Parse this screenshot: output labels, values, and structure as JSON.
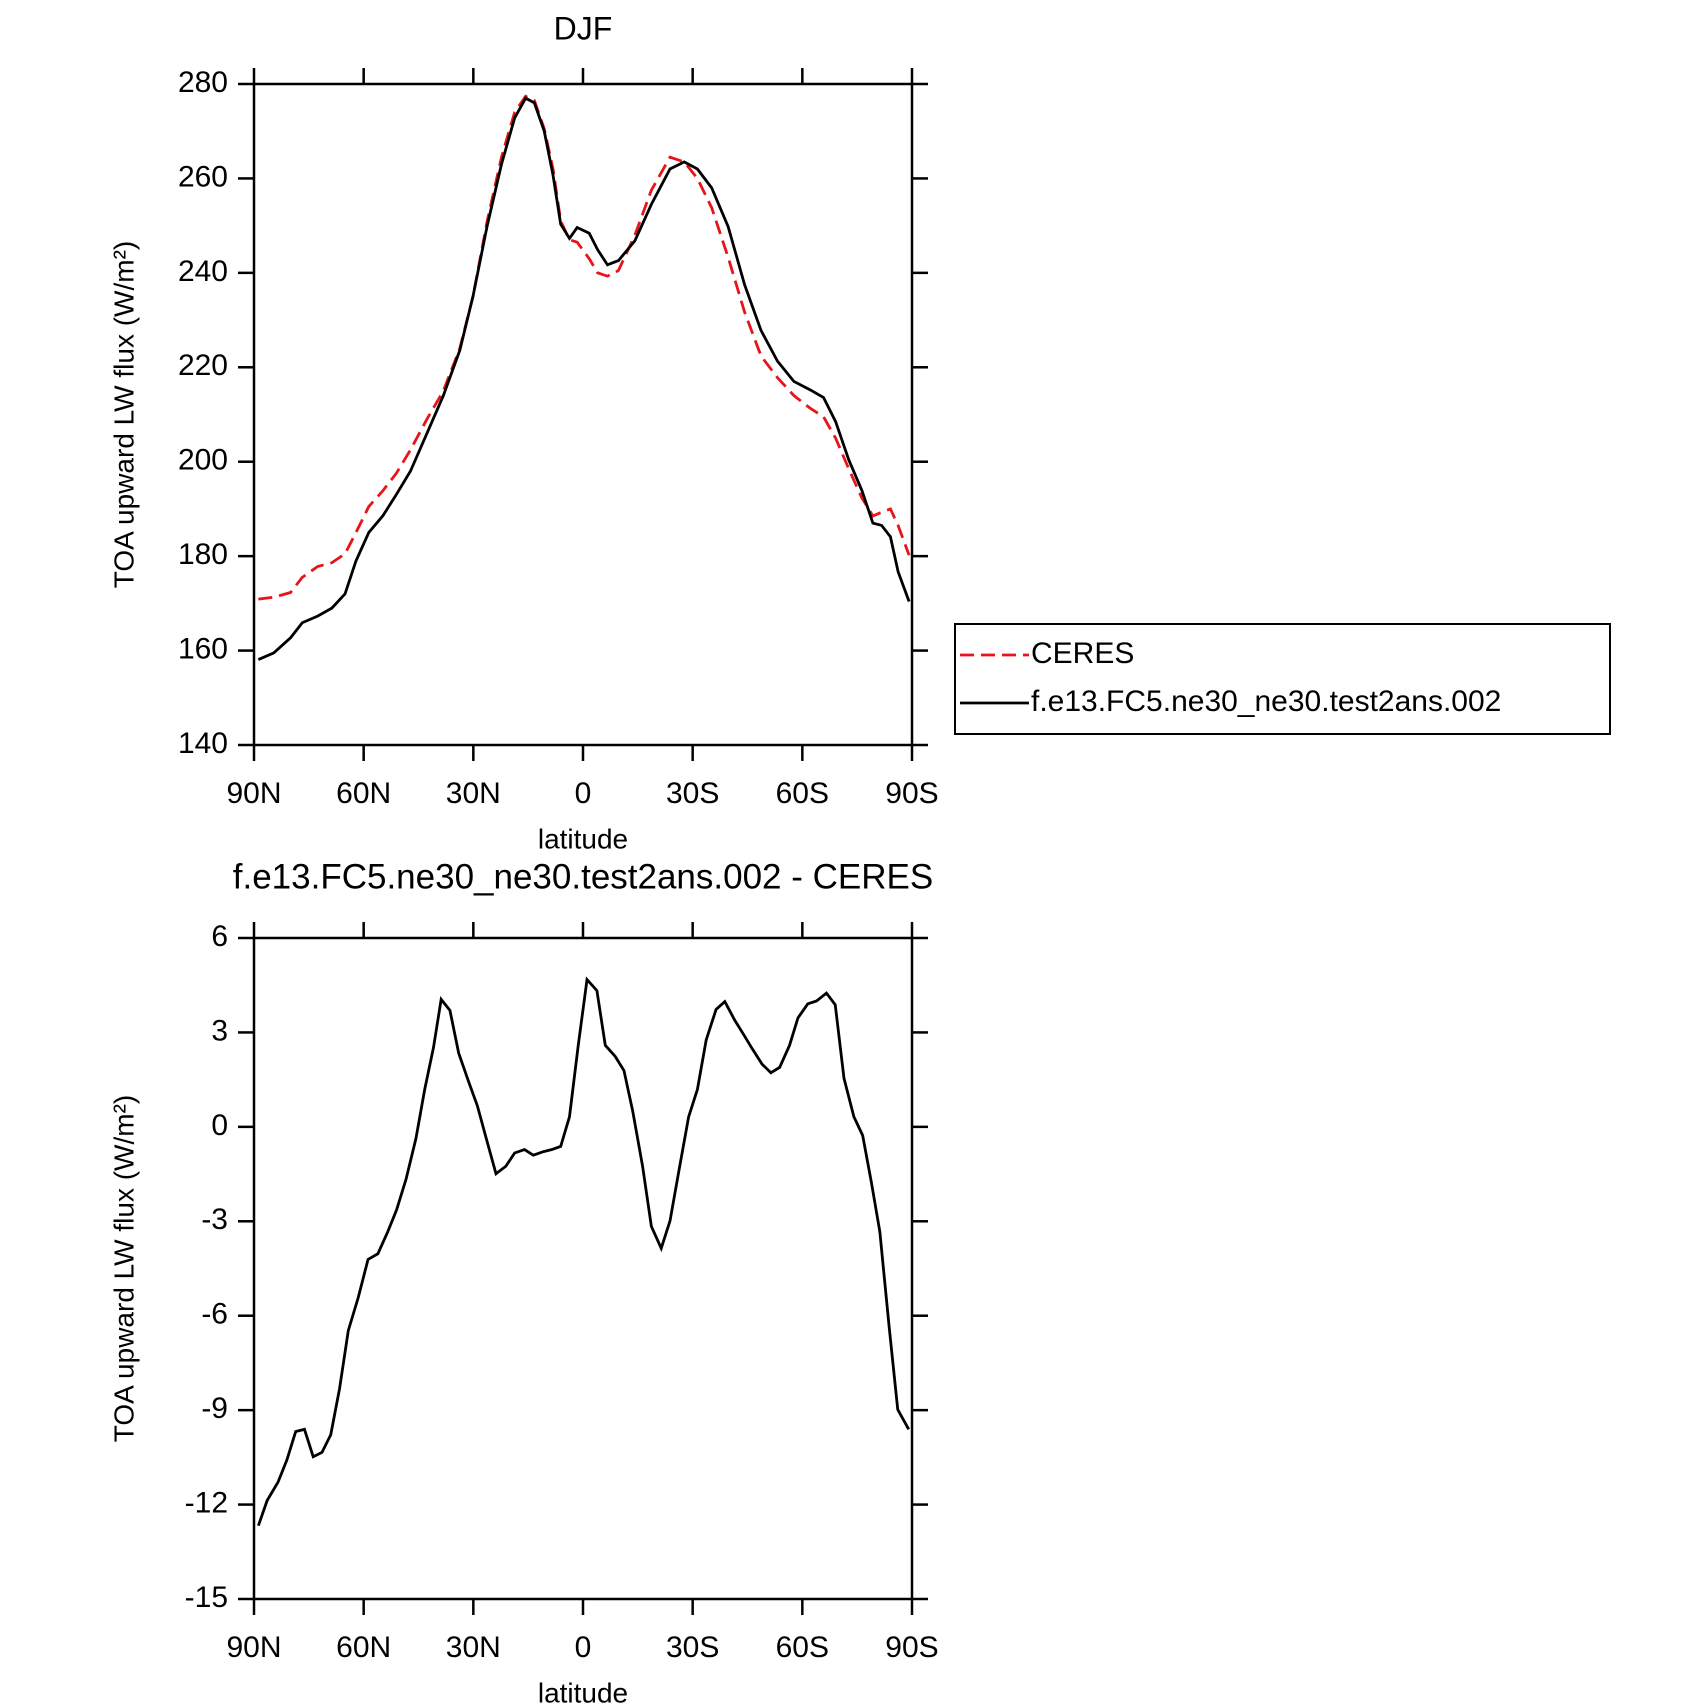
{
  "chart_data": [
    {
      "type": "line",
      "title": "DJF",
      "x_label": "latitude",
      "y_label": "TOA upward LW flux (W/m²)",
      "x": [
        88.8,
        84.6,
        80,
        76.8,
        72.6,
        68.7,
        65.1,
        62.1,
        58.6,
        54.7,
        51.1,
        47.2,
        42.7,
        38.2,
        33.7,
        30.1,
        26.2,
        22.3,
        18.7,
        15.7,
        13.3,
        10.6,
        8.2,
        6.1,
        3.7,
        1.6,
        -1.7,
        -4,
        -6.7,
        -9.7,
        -14.2,
        -18.7,
        -23.8,
        -27.7,
        -31.3,
        -35.2,
        -39.7,
        -44.2,
        -48.7,
        -53.2,
        -57.7,
        -62.2,
        -65.8,
        -69.1,
        -72.7,
        -76.3,
        -79.3,
        -81.7,
        -84.1,
        -86.2,
        -89.2
      ],
      "series": [
        {
          "name": "CERES",
          "color": "#e8141a",
          "dash": "dashed",
          "values": [
            170.9,
            171.3,
            172.3,
            175.5,
            177.8,
            178.6,
            180.5,
            185,
            190.5,
            193.9,
            197.5,
            202.5,
            209,
            215,
            224,
            235,
            251,
            264.5,
            274,
            277.4,
            276.5,
            270.5,
            262,
            251,
            247,
            246.5,
            243,
            240,
            239.3,
            240.5,
            248,
            257.5,
            264.5,
            263.5,
            260,
            253.8,
            243.3,
            231.7,
            222.4,
            217.8,
            214,
            211.3,
            209.5,
            205,
            198.5,
            192.3,
            188.5,
            189.3,
            190,
            186.5,
            180.2
          ]
        },
        {
          "name": "f.e13.FC5.ne30_ne30.test2ans.002",
          "color": "#000000",
          "values": [
            158.1,
            159.5,
            162.7,
            165.9,
            167.3,
            169,
            172,
            179,
            185,
            188.6,
            193,
            198,
            206,
            214,
            223.6,
            235,
            250,
            263,
            272.8,
            277,
            276,
            270,
            260.7,
            250.3,
            247.3,
            249.6,
            248.4,
            244.9,
            241.7,
            242.6,
            246.8,
            254.5,
            262,
            263.5,
            262,
            258,
            249.8,
            237.5,
            227.8,
            221.3,
            217,
            215.2,
            213.6,
            208.5,
            200.4,
            193.9,
            187,
            186.5,
            184.1,
            176.7,
            170.4
          ]
        }
      ],
      "xlim": [
        90,
        -90
      ],
      "xticks": [
        {
          "value": 90,
          "label": "90N"
        },
        {
          "value": 60,
          "label": "60N"
        },
        {
          "value": 30,
          "label": "30N"
        },
        0,
        {
          "value": -30,
          "label": "30S"
        },
        {
          "value": -60,
          "label": "60S"
        },
        {
          "value": -90,
          "label": "90S"
        }
      ],
      "ylim": [
        140,
        280
      ],
      "yticks": [
        140,
        160,
        180,
        200,
        220,
        240,
        260,
        280
      ],
      "legend": "right"
    },
    {
      "type": "line",
      "title": "f.e13.FC5.ne30_ne30.test2ans.002 - CERES",
      "x_label": "latitude",
      "y_label": "TOA upward LW flux (W/m²)",
      "x": [
        88.8,
        86.4,
        83.4,
        81.0,
        78.6,
        76.2,
        73.8,
        71.4,
        69.0,
        66.6,
        64.2,
        61.5,
        58.8,
        56.1,
        53.4,
        51.0,
        48.4,
        45.7,
        43.3,
        40.9,
        38.8,
        36.4,
        34.0,
        31.3,
        28.9,
        26.2,
        23.8,
        21.1,
        18.7,
        16.0,
        13.6,
        10.9,
        8.5,
        6.1,
        3.7,
        1.3,
        -1.1,
        -3.8,
        -6.1,
        -8.8,
        -11.2,
        -13.6,
        -16.3,
        -18.7,
        -21.4,
        -23.8,
        -26.2,
        -28.9,
        -31.3,
        -33.7,
        -36.4,
        -38.8,
        -41.5,
        -43.9,
        -46.3,
        -49.0,
        -51.4,
        -53.8,
        -56.5,
        -58.8,
        -61.5,
        -63.9,
        -66.6,
        -69.0,
        -71.4,
        -74.1,
        -76.5,
        -78.9,
        -81.2,
        -83.7,
        -86.1,
        -89.1
      ],
      "series": [
        {
          "color": "#000000",
          "values": [
            -12.67,
            -11.87,
            -11.28,
            -10.58,
            -9.68,
            -9.61,
            -10.48,
            -10.34,
            -9.78,
            -8.32,
            -6.47,
            -5.43,
            -4.21,
            -4.03,
            -3.33,
            -2.64,
            -1.66,
            -0.37,
            1.19,
            2.52,
            4.05,
            3.7,
            2.34,
            1.44,
            0.67,
            -0.48,
            -1.49,
            -1.25,
            -0.83,
            -0.72,
            -0.9,
            -0.79,
            -0.72,
            -0.62,
            0.32,
            2.59,
            4.68,
            4.33,
            2.59,
            2.24,
            1.79,
            0.5,
            -1.25,
            -3.16,
            -3.86,
            -2.99,
            -1.42,
            0.32,
            1.19,
            2.76,
            3.73,
            3.98,
            3.39,
            2.94,
            2.48,
            1.99,
            1.72,
            1.89,
            2.59,
            3.46,
            3.91,
            4.0,
            4.25,
            3.88,
            1.54,
            0.32,
            -0.27,
            -1.77,
            -3.33,
            -6.3,
            -8.98,
            -9.61
          ]
        }
      ],
      "xlim": [
        90,
        -90
      ],
      "xticks": [
        {
          "value": 90,
          "label": "90N"
        },
        {
          "value": 60,
          "label": "60N"
        },
        {
          "value": 30,
          "label": "30N"
        },
        0,
        {
          "value": -30,
          "label": "30S"
        },
        {
          "value": -60,
          "label": "60S"
        },
        {
          "value": -90,
          "label": "90S"
        }
      ],
      "ylim": [
        -15,
        6
      ],
      "yticks": [
        -15,
        -12,
        -9,
        -6,
        -3,
        0,
        3,
        6
      ]
    }
  ]
}
